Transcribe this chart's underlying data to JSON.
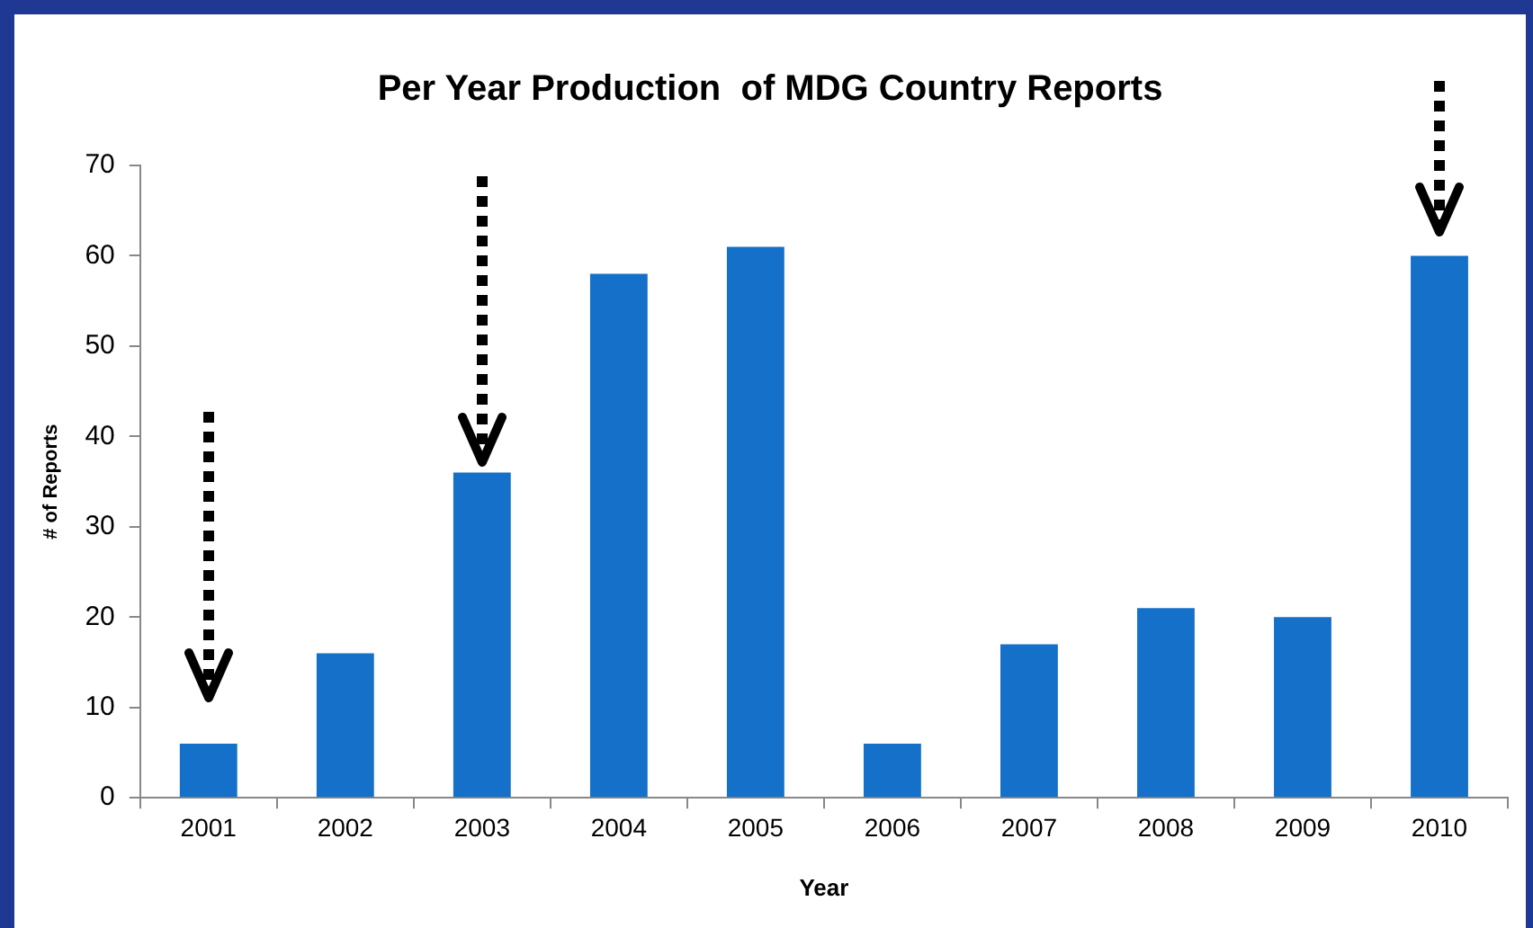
{
  "chart_data": {
    "type": "bar",
    "title": "Per Year Production  of MDG Country Reports",
    "xlabel": "Year",
    "ylabel": "# of Reports",
    "categories": [
      "2001",
      "2002",
      "2003",
      "2004",
      "2005",
      "2006",
      "2007",
      "2008",
      "2009",
      "2010"
    ],
    "values": [
      6,
      16,
      36,
      58,
      61,
      6,
      17,
      21,
      20,
      60
    ],
    "color": "#1470c8",
    "ylim": [
      0,
      70
    ],
    "yticks": [
      0,
      10,
      20,
      30,
      40,
      50,
      60,
      70
    ],
    "grid": false,
    "legend": false
  }
}
